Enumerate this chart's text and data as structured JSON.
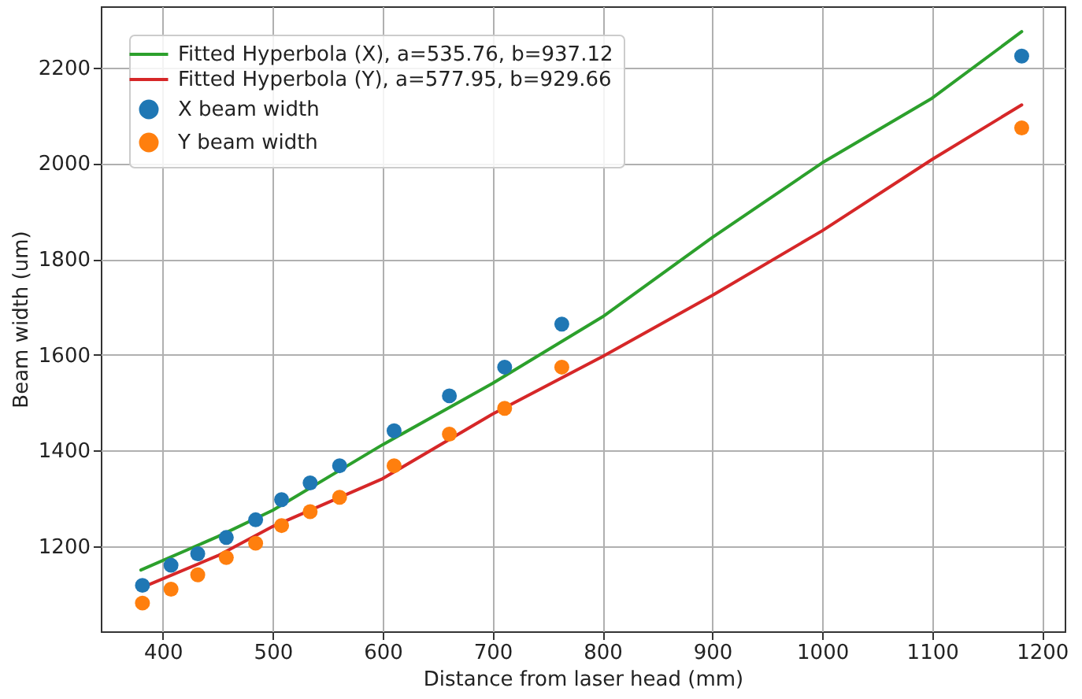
{
  "chart_data": {
    "type": "scatter",
    "xlabel": "Distance from laser head (mm)",
    "ylabel": "Beam width (um)",
    "xlim": [
      343.5,
      1220.6
    ],
    "ylim": [
      1022,
      2328
    ],
    "xticks": [
      400,
      500,
      600,
      700,
      800,
      900,
      1000,
      1100,
      1200
    ],
    "yticks": [
      1200,
      1400,
      1600,
      1800,
      2000,
      2200
    ],
    "grid": true,
    "legend": "top left",
    "marker": "circle",
    "series": [
      {
        "name": "Fitted Hyperbola (X), a=535.76, b=937.12",
        "type": "line",
        "marker": "none",
        "color": "#2ca02c",
        "x": [
          380,
          450,
          500,
          600,
          700,
          800,
          900,
          1000,
          1100,
          1181.5
        ],
        "values": [
          1150,
          1220,
          1275,
          1412,
          1540,
          1679,
          1845,
          2001,
          2136,
          2275
        ]
      },
      {
        "name": "Fitted Hyperbola (Y), a=577.95, b=929.66",
        "type": "line",
        "marker": "none",
        "color": "#d62728",
        "x": [
          385.7,
          450,
          500,
          600,
          700,
          800,
          900,
          1000,
          1100,
          1181.5
        ],
        "values": [
          1118,
          1180,
          1241,
          1341,
          1476,
          1596,
          1724,
          1859,
          2008,
          2122
        ]
      },
      {
        "name": "X beam width",
        "color": "#1f77b4",
        "x": [
          381.4,
          407.4,
          431.7,
          457.7,
          484.4,
          508,
          534,
          560.8,
          610.4,
          660.7,
          711,
          763,
          1181.5
        ],
        "values": [
          1118,
          1160,
          1184,
          1218,
          1255,
          1297,
          1332,
          1368,
          1441,
          1514,
          1574,
          1664,
          2224
        ]
      },
      {
        "name": "Y beam width",
        "color": "#ff7f0e",
        "x": [
          381.4,
          407.4,
          431.7,
          457.7,
          484.4,
          508,
          534,
          560.8,
          610.4,
          660.7,
          711,
          763,
          1181.5
        ],
        "values": [
          1081,
          1110,
          1140,
          1176,
          1206,
          1243,
          1272,
          1302,
          1368,
          1434,
          1488,
          1574,
          2074
        ]
      }
    ]
  }
}
